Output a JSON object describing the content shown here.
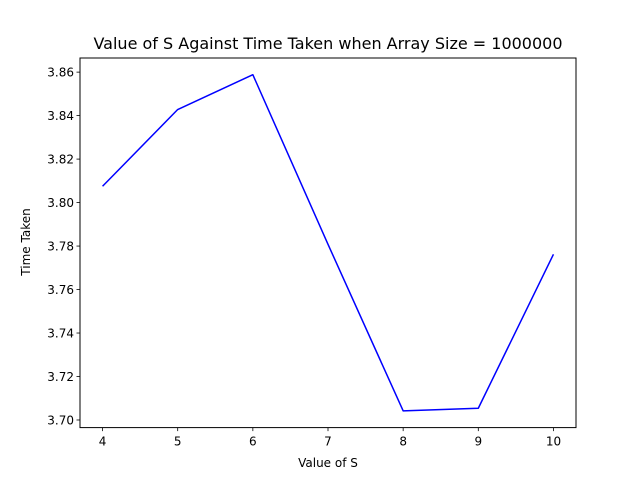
{
  "chart_data": {
    "type": "line",
    "title": "Value of S Against Time Taken when Array Size = 1000000",
    "xlabel": "Value of S",
    "ylabel": "Time Taken",
    "xlim": [
      3.7,
      10.3
    ],
    "ylim": [
      3.6965,
      3.8665
    ],
    "xticks": [
      4,
      5,
      6,
      7,
      8,
      9,
      10
    ],
    "yticks": [
      3.7,
      3.72,
      3.74,
      3.76,
      3.78,
      3.8,
      3.82,
      3.84,
      3.86
    ],
    "xtick_labels": [
      "4",
      "5",
      "6",
      "7",
      "8",
      "9",
      "10"
    ],
    "ytick_labels": [
      "3.70",
      "3.72",
      "3.74",
      "3.76",
      "3.78",
      "3.80",
      "3.82",
      "3.84",
      "3.86"
    ],
    "grid": false,
    "series": [
      {
        "color": "#0000ff",
        "x": [
          4,
          5,
          6,
          7,
          8,
          9,
          10
        ],
        "y": [
          3.8075,
          3.8428,
          3.8588,
          3.7808,
          3.7042,
          3.7054,
          3.7762
        ]
      }
    ]
  }
}
